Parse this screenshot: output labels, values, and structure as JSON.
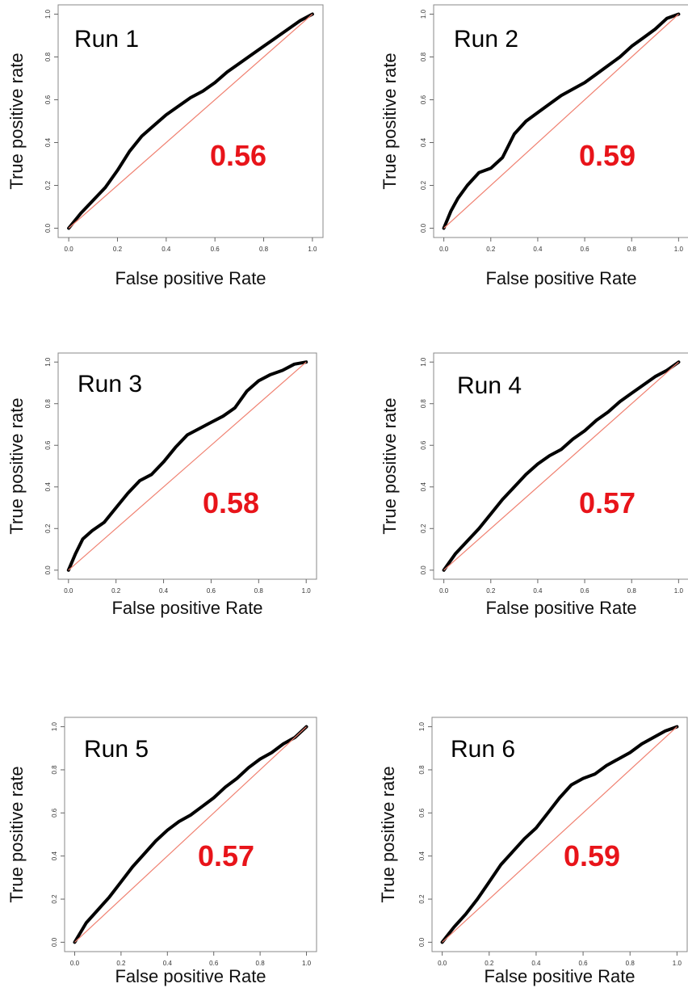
{
  "colors": {
    "roc_curve": "#000000",
    "diagonal": "#f08070",
    "auc_text": "#e8141a"
  },
  "chart_data": [
    {
      "type": "line",
      "title": "Run 1",
      "auc_label": "0.56",
      "xlabel": "False positive Rate",
      "ylabel": "True positive rate",
      "xlim": [
        0,
        1
      ],
      "ylim": [
        0,
        1
      ],
      "x_ticks": [
        "0.0",
        "0.2",
        "0.4",
        "0.6",
        "0.8",
        "1.0"
      ],
      "y_ticks": [
        "0.0",
        "0.2",
        "0.4",
        "0.6",
        "0.8",
        "1.0"
      ],
      "series": [
        {
          "style": "roc",
          "x": [
            0,
            0.05,
            0.1,
            0.15,
            0.2,
            0.25,
            0.3,
            0.35,
            0.4,
            0.45,
            0.5,
            0.55,
            0.6,
            0.65,
            0.7,
            0.75,
            0.8,
            0.85,
            0.9,
            0.95,
            1.0
          ],
          "y": [
            0,
            0.07,
            0.13,
            0.19,
            0.27,
            0.36,
            0.43,
            0.48,
            0.53,
            0.57,
            0.61,
            0.64,
            0.68,
            0.73,
            0.77,
            0.81,
            0.85,
            0.89,
            0.93,
            0.97,
            1.0
          ]
        },
        {
          "style": "diagonal",
          "x": [
            0,
            1
          ],
          "y": [
            0,
            1
          ]
        }
      ]
    },
    {
      "type": "line",
      "title": "Run 2",
      "auc_label": "0.59",
      "xlabel": "False positive Rate",
      "ylabel": "True positive rate",
      "xlim": [
        0,
        1
      ],
      "ylim": [
        0,
        1
      ],
      "x_ticks": [
        "0.0",
        "0.2",
        "0.4",
        "0.6",
        "0.8",
        "1.0"
      ],
      "y_ticks": [
        "0.0",
        "0.2",
        "0.4",
        "0.6",
        "0.8",
        "1.0"
      ],
      "series": [
        {
          "style": "roc",
          "x": [
            0,
            0.03,
            0.06,
            0.1,
            0.15,
            0.2,
            0.25,
            0.3,
            0.35,
            0.4,
            0.45,
            0.5,
            0.55,
            0.6,
            0.65,
            0.7,
            0.75,
            0.8,
            0.85,
            0.9,
            0.95,
            1.0
          ],
          "y": [
            0,
            0.08,
            0.14,
            0.2,
            0.26,
            0.28,
            0.33,
            0.44,
            0.5,
            0.54,
            0.58,
            0.62,
            0.65,
            0.68,
            0.72,
            0.76,
            0.8,
            0.85,
            0.89,
            0.93,
            0.98,
            1.0
          ]
        },
        {
          "style": "diagonal",
          "x": [
            0,
            1
          ],
          "y": [
            0,
            1
          ]
        }
      ]
    },
    {
      "type": "line",
      "title": "Run 3",
      "auc_label": "0.58",
      "xlabel": "False positive Rate",
      "ylabel": "True positive rate",
      "xlim": [
        0,
        1
      ],
      "ylim": [
        0,
        1
      ],
      "x_ticks": [
        "0.0",
        "0.2",
        "0.4",
        "0.6",
        "0.8",
        "1.0"
      ],
      "y_ticks": [
        "0.0",
        "0.2",
        "0.4",
        "0.6",
        "0.8",
        "1.0"
      ],
      "series": [
        {
          "style": "roc",
          "x": [
            0,
            0.03,
            0.06,
            0.1,
            0.15,
            0.2,
            0.25,
            0.3,
            0.35,
            0.4,
            0.45,
            0.5,
            0.55,
            0.6,
            0.65,
            0.7,
            0.75,
            0.8,
            0.85,
            0.9,
            0.95,
            1.0
          ],
          "y": [
            0,
            0.08,
            0.15,
            0.19,
            0.23,
            0.3,
            0.37,
            0.43,
            0.46,
            0.52,
            0.59,
            0.65,
            0.68,
            0.71,
            0.74,
            0.78,
            0.86,
            0.91,
            0.94,
            0.96,
            0.99,
            1.0
          ]
        },
        {
          "style": "diagonal",
          "x": [
            0,
            1
          ],
          "y": [
            0,
            1
          ]
        }
      ]
    },
    {
      "type": "line",
      "title": "Run 4",
      "auc_label": "0.57",
      "xlabel": "False positive Rate",
      "ylabel": "True positive rate",
      "xlim": [
        0,
        1
      ],
      "ylim": [
        0,
        1
      ],
      "x_ticks": [
        "0.0",
        "0.2",
        "0.4",
        "0.6",
        "0.8",
        "1.0"
      ],
      "y_ticks": [
        "0.0",
        "0.2",
        "0.4",
        "0.6",
        "0.8",
        "1.0"
      ],
      "series": [
        {
          "style": "roc",
          "x": [
            0,
            0.05,
            0.1,
            0.15,
            0.2,
            0.25,
            0.3,
            0.35,
            0.4,
            0.45,
            0.5,
            0.55,
            0.6,
            0.65,
            0.7,
            0.75,
            0.8,
            0.85,
            0.9,
            0.95,
            1.0
          ],
          "y": [
            0,
            0.08,
            0.14,
            0.2,
            0.27,
            0.34,
            0.4,
            0.46,
            0.51,
            0.55,
            0.58,
            0.63,
            0.67,
            0.72,
            0.76,
            0.81,
            0.85,
            0.89,
            0.93,
            0.96,
            1.0
          ]
        },
        {
          "style": "diagonal",
          "x": [
            0,
            1
          ],
          "y": [
            0,
            1
          ]
        }
      ]
    },
    {
      "type": "line",
      "title": "Run 5",
      "auc_label": "0.57",
      "xlabel": "False positive Rate",
      "ylabel": "True positive rate",
      "xlim": [
        0,
        1
      ],
      "ylim": [
        0,
        1
      ],
      "x_ticks": [
        "0.0",
        "0.2",
        "0.4",
        "0.6",
        "0.8",
        "1.0"
      ],
      "y_ticks": [
        "0.0",
        "0.2",
        "0.4",
        "0.6",
        "0.8",
        "1.0"
      ],
      "series": [
        {
          "style": "roc",
          "x": [
            0,
            0.05,
            0.1,
            0.15,
            0.2,
            0.25,
            0.3,
            0.35,
            0.4,
            0.45,
            0.5,
            0.55,
            0.6,
            0.65,
            0.7,
            0.75,
            0.8,
            0.85,
            0.9,
            0.95,
            1.0
          ],
          "y": [
            0,
            0.09,
            0.15,
            0.21,
            0.28,
            0.35,
            0.41,
            0.47,
            0.52,
            0.56,
            0.59,
            0.63,
            0.67,
            0.72,
            0.76,
            0.81,
            0.85,
            0.88,
            0.92,
            0.95,
            1.0
          ]
        },
        {
          "style": "diagonal",
          "x": [
            0,
            1
          ],
          "y": [
            0,
            1
          ]
        }
      ]
    },
    {
      "type": "line",
      "title": "Run 6",
      "auc_label": "0.59",
      "xlabel": "False positive Rate",
      "ylabel": "True positive rate",
      "xlim": [
        0,
        1
      ],
      "ylim": [
        0,
        1
      ],
      "x_ticks": [
        "0.0",
        "0.2",
        "0.4",
        "0.6",
        "0.8",
        "1.0"
      ],
      "y_ticks": [
        "0.0",
        "0.2",
        "0.4",
        "0.6",
        "0.8",
        "1.0"
      ],
      "series": [
        {
          "style": "roc",
          "x": [
            0,
            0.05,
            0.1,
            0.15,
            0.2,
            0.25,
            0.3,
            0.35,
            0.4,
            0.45,
            0.5,
            0.55,
            0.6,
            0.65,
            0.7,
            0.75,
            0.8,
            0.85,
            0.9,
            0.95,
            1.0
          ],
          "y": [
            0,
            0.07,
            0.13,
            0.2,
            0.28,
            0.36,
            0.42,
            0.48,
            0.53,
            0.6,
            0.67,
            0.73,
            0.76,
            0.78,
            0.82,
            0.85,
            0.88,
            0.92,
            0.95,
            0.98,
            1.0
          ]
        },
        {
          "style": "diagonal",
          "x": [
            0,
            1
          ],
          "y": [
            0,
            1
          ]
        }
      ]
    }
  ]
}
